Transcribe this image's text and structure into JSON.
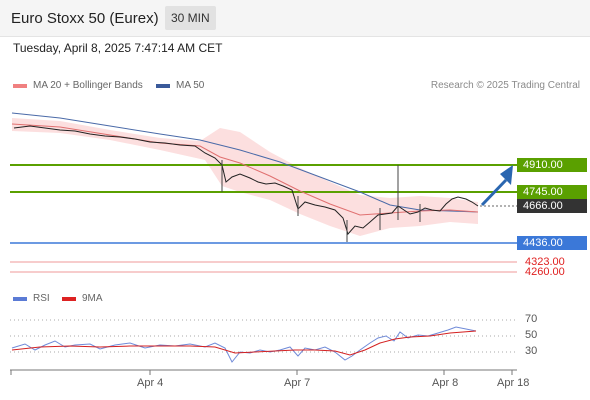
{
  "header": {
    "title": "Euro Stoxx 50 (Eurex)",
    "timeframe": "30 MIN"
  },
  "datetime": "Tuesday, April 8, 2025 7:47:14 AM CET",
  "legend": {
    "ma20": "MA 20 + Bollinger Bands",
    "ma50": "MA 50",
    "credit": "Research © 2025 Trading Central",
    "rsi": "RSI",
    "rsi_ma": "9MA"
  },
  "colors": {
    "ma20": "#f08080",
    "ma50": "#3a5a9a",
    "resistance": "#5aa000",
    "support": "#3b78d8",
    "minor": "#e05050",
    "arrow": "#2a66b0",
    "current": "#333333",
    "rsi": "#5b7bd5",
    "rsi_ma": "#dd2222"
  },
  "levels": {
    "r2": "4910.00",
    "r1": "4745.00",
    "current": "4666.00",
    "s1": "4436.00",
    "s2": "4323.00",
    "s3": "4260.00"
  },
  "rsi_levels": [
    "70",
    "50",
    "30"
  ],
  "x_axis": [
    "Apr 4",
    "Apr 7",
    "Apr 8",
    "Apr 18"
  ]
}
